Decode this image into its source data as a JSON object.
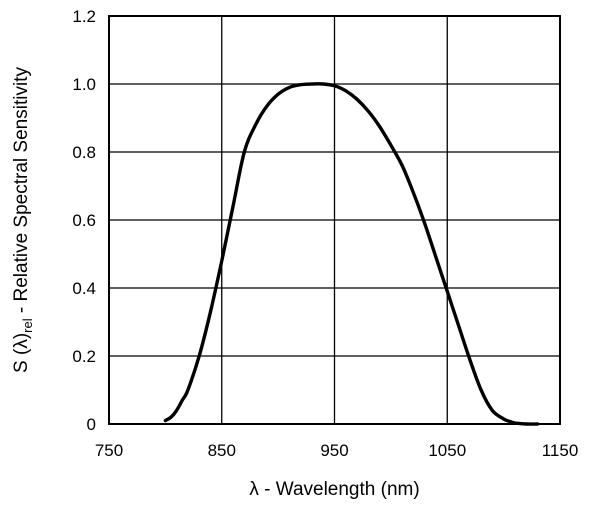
{
  "chart_data": {
    "type": "line",
    "xlabel": "λ - Wavelength (nm)",
    "ylabel": {
      "prefix": "S (λ)",
      "subscript": "rel",
      "suffix": " - Relative Spectral Sensitivity"
    },
    "xlim": [
      750,
      1150
    ],
    "ylim": [
      0,
      1.2
    ],
    "x_ticks": [
      {
        "value": 750,
        "label": "750"
      },
      {
        "value": 850,
        "label": "850"
      },
      {
        "value": 950,
        "label": "950"
      },
      {
        "value": 1050,
        "label": "1050"
      },
      {
        "value": 1150,
        "label": "1150"
      }
    ],
    "y_ticks": [
      {
        "value": 0,
        "label": "0"
      },
      {
        "value": 0.2,
        "label": "0.2"
      },
      {
        "value": 0.4,
        "label": "0.4"
      },
      {
        "value": 0.6,
        "label": "0.6"
      },
      {
        "value": 0.8,
        "label": "0.8"
      },
      {
        "value": 1.0,
        "label": "1.0"
      },
      {
        "value": 1.2,
        "label": "1.2"
      }
    ],
    "grid": true,
    "series": [
      {
        "x": [
          800,
          805,
          810,
          815,
          820,
          830,
          840,
          850,
          860,
          870,
          880,
          890,
          900,
          910,
          920,
          930,
          940,
          950,
          960,
          970,
          980,
          990,
          1000,
          1010,
          1020,
          1030,
          1040,
          1050,
          1060,
          1070,
          1080,
          1090,
          1100,
          1105,
          1110,
          1120,
          1130
        ],
        "y": [
          0.01,
          0.02,
          0.04,
          0.07,
          0.1,
          0.2,
          0.33,
          0.48,
          0.64,
          0.8,
          0.88,
          0.935,
          0.97,
          0.99,
          0.998,
          1.0,
          1.0,
          0.995,
          0.98,
          0.955,
          0.92,
          0.875,
          0.82,
          0.76,
          0.68,
          0.59,
          0.49,
          0.39,
          0.29,
          0.19,
          0.1,
          0.04,
          0.015,
          0.008,
          0.003,
          0.0,
          0.0
        ]
      }
    ]
  }
}
